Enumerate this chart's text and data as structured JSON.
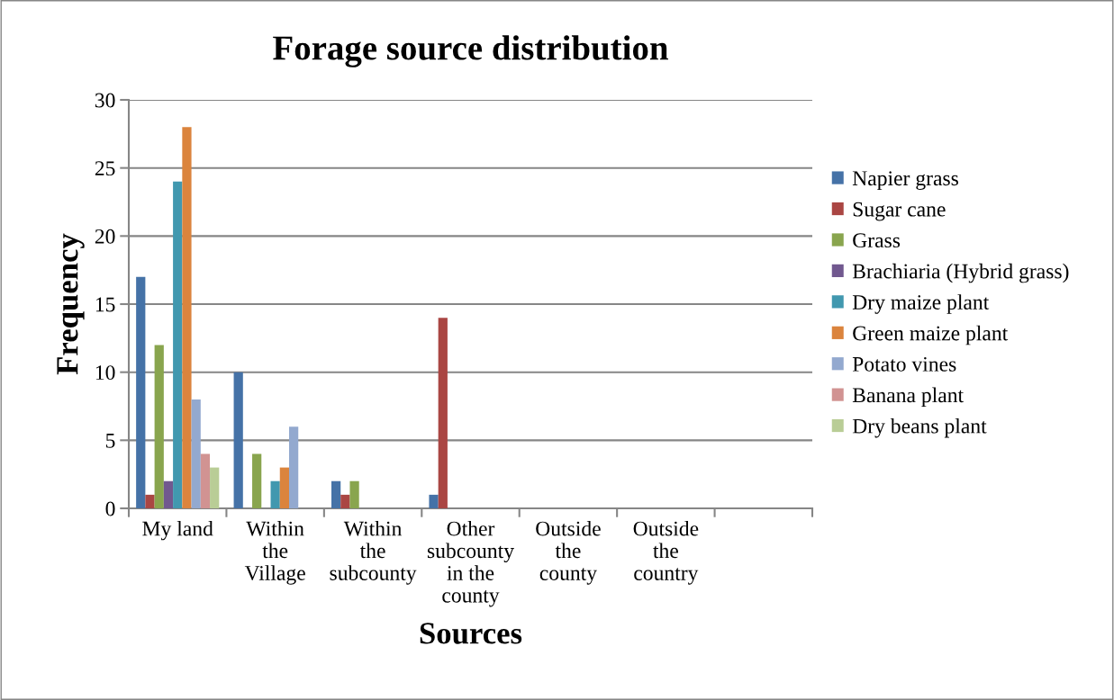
{
  "chart_data": {
    "type": "bar",
    "title": "Forage source distribution",
    "xlabel": "Sources",
    "ylabel": "Frequency",
    "categories": [
      "My land",
      "Within the Village",
      "Within the subcounty",
      "Other subcounty in the county",
      "Outside the county",
      "Outside the country",
      null
    ],
    "series": [
      {
        "name": "Napier grass",
        "color": "#4572a7",
        "values": [
          17,
          10,
          2,
          1,
          0,
          0,
          0
        ]
      },
      {
        "name": "Sugar cane",
        "color": "#aa4643",
        "values": [
          1,
          0,
          1,
          14,
          0,
          0,
          0
        ]
      },
      {
        "name": "Grass",
        "color": "#89a54e",
        "values": [
          12,
          4,
          2,
          0,
          0,
          0,
          0
        ]
      },
      {
        "name": "Brachiaria (Hybrid grass)",
        "color": "#71588f",
        "values": [
          2,
          0,
          0,
          0,
          0,
          0,
          0
        ]
      },
      {
        "name": "Dry maize plant",
        "color": "#4198af",
        "values": [
          24,
          2,
          0,
          0,
          0,
          0,
          0
        ]
      },
      {
        "name": "Green maize plant",
        "color": "#db843d",
        "values": [
          28,
          3,
          0,
          0,
          0,
          0,
          0
        ]
      },
      {
        "name": "Potato vines",
        "color": "#93a9cf",
        "values": [
          8,
          6,
          0,
          0,
          0,
          0,
          0
        ]
      },
      {
        "name": "Banana plant",
        "color": "#d19392",
        "values": [
          4,
          0,
          0,
          0,
          0,
          0,
          0
        ]
      },
      {
        "name": "Dry beans plant",
        "color": "#b9cd96",
        "values": [
          3,
          0,
          0,
          0,
          0,
          0,
          0
        ]
      }
    ],
    "ylim": [
      0,
      30
    ],
    "yticks": [
      0,
      5,
      10,
      15,
      20,
      25,
      30
    ],
    "grid": "y",
    "legend": "right"
  }
}
